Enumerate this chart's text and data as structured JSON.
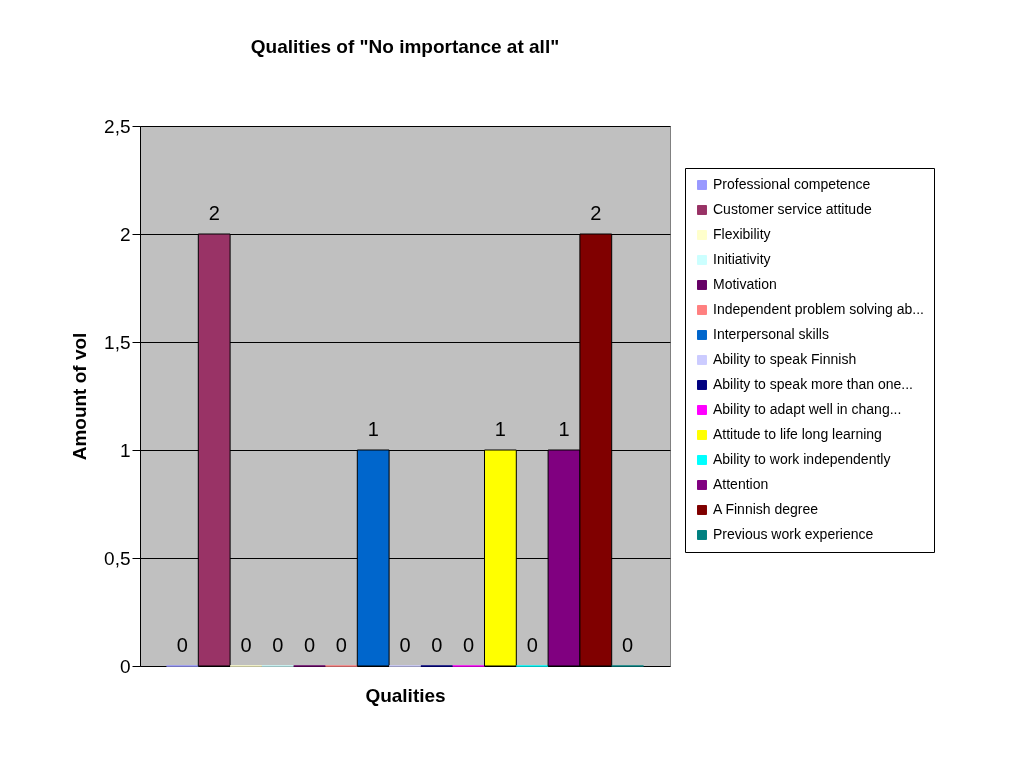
{
  "chart_data": {
    "type": "bar",
    "title": "Qualities of \"No importance at all\"",
    "xlabel": "Qualities",
    "ylabel": "Amount of vol",
    "categories": [
      null
    ],
    "series": [
      {
        "name": "Professional competence",
        "color": "#9999ff",
        "values": [
          0
        ]
      },
      {
        "name": "Customer service attitude",
        "color": "#993366",
        "values": [
          2
        ]
      },
      {
        "name": "Flexibility",
        "color": "#ffffcc",
        "values": [
          0
        ]
      },
      {
        "name": "Initiativity",
        "color": "#ccffff",
        "values": [
          0
        ]
      },
      {
        "name": "Motivation",
        "color": "#660066",
        "values": [
          0
        ]
      },
      {
        "name": "Independent problem solving ab...",
        "color": "#ff8080",
        "values": [
          0
        ]
      },
      {
        "name": "Interpersonal skills",
        "color": "#0066cc",
        "values": [
          1
        ]
      },
      {
        "name": "Ability to speak Finnish",
        "color": "#ccccff",
        "values": [
          0
        ]
      },
      {
        "name": "Ability to speak more than one...",
        "color": "#000080",
        "values": [
          0
        ]
      },
      {
        "name": "Ability to adapt well in chang...",
        "color": "#ff00ff",
        "values": [
          0
        ]
      },
      {
        "name": "Attitude to life long learning",
        "color": "#ffff00",
        "values": [
          1
        ]
      },
      {
        "name": "Ability to work independently",
        "color": "#00ffff",
        "values": [
          0
        ]
      },
      {
        "name": "Attention",
        "color": "#800080",
        "values": [
          1
        ]
      },
      {
        "name": "A Finnish degree",
        "color": "#800000",
        "values": [
          2
        ]
      },
      {
        "name": "Previous work experience",
        "color": "#008080",
        "values": [
          0
        ]
      }
    ],
    "ylim": [
      0,
      2.5
    ],
    "yticks": [
      0,
      {
        "value": 0.5,
        "label": "0,5"
      },
      1,
      {
        "value": 1.5,
        "label": "1,5"
      },
      2,
      {
        "value": 2.5,
        "label": "2,5"
      }
    ],
    "grid": "y",
    "legend": "right",
    "data_labels": true
  }
}
